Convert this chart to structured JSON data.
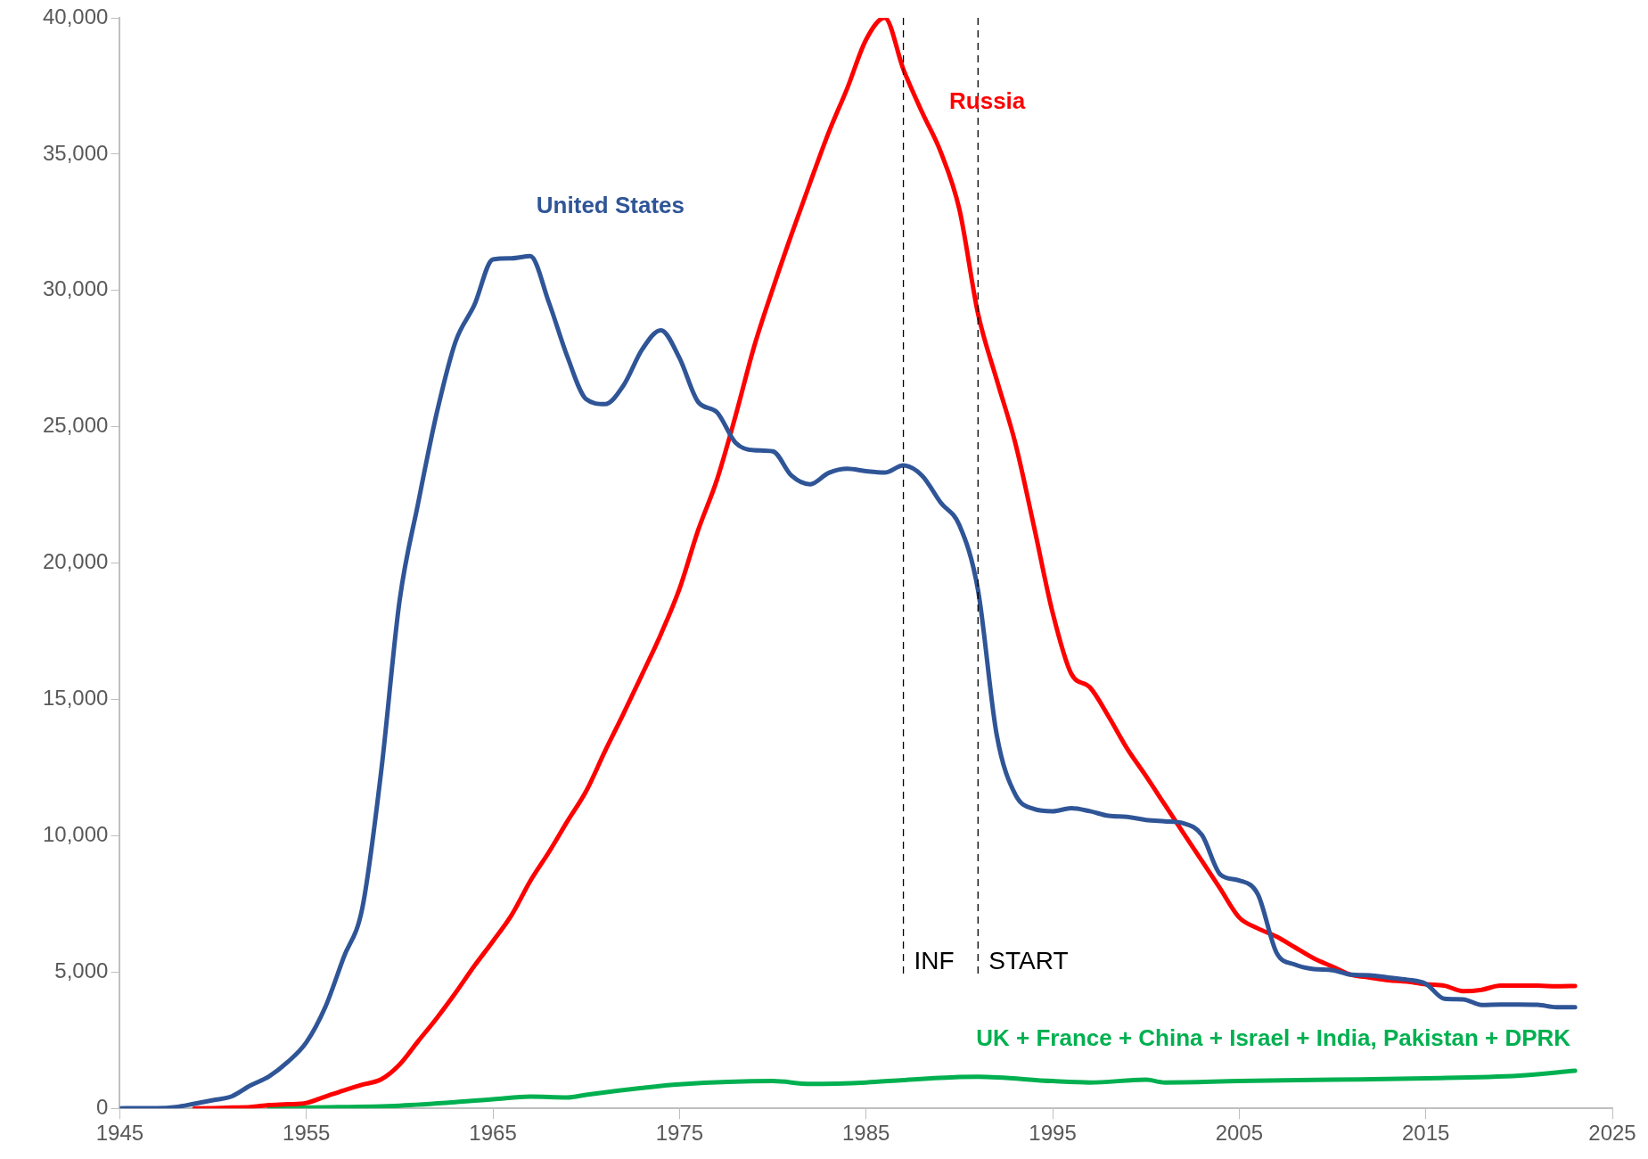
{
  "chart_data": {
    "type": "line",
    "xlim": [
      1945,
      2025
    ],
    "xticks": [
      1945,
      1955,
      1965,
      1975,
      1985,
      1995,
      2005,
      2015,
      2025
    ],
    "ylim": [
      0,
      40000
    ],
    "yticks": [
      {
        "value": 0,
        "label": "0"
      },
      {
        "value": 5000,
        "label": "5,000"
      },
      {
        "value": 10000,
        "label": "10,000"
      },
      {
        "value": 15000,
        "label": "15,000"
      },
      {
        "value": 20000,
        "label": "20,000"
      },
      {
        "value": 25000,
        "label": "25,000"
      },
      {
        "value": 30000,
        "label": "30,000"
      },
      {
        "value": 35000,
        "label": "35,000"
      },
      {
        "value": 40000,
        "label": "40,000"
      }
    ],
    "grid": false,
    "legend": false,
    "marker": "none",
    "line_style": "solid",
    "series": [
      {
        "name": "United States",
        "color": "#2f5597",
        "x": [
          1945,
          1946,
          1947,
          1948,
          1949,
          1950,
          1951,
          1952,
          1953,
          1954,
          1955,
          1956,
          1957,
          1958,
          1959,
          1960,
          1961,
          1962,
          1963,
          1964,
          1965,
          1966,
          1967,
          1968,
          1969,
          1970,
          1971,
          1972,
          1973,
          1974,
          1975,
          1976,
          1977,
          1978,
          1979,
          1980,
          1981,
          1982,
          1983,
          1984,
          1985,
          1986,
          1987,
          1988,
          1989,
          1990,
          1991,
          1992,
          1993,
          1994,
          1995,
          1996,
          1997,
          1998,
          1999,
          2000,
          2001,
          2002,
          2003,
          2004,
          2005,
          2006,
          2007,
          2008,
          2009,
          2010,
          2011,
          2012,
          2013,
          2014,
          2015,
          2016,
          2017,
          2018,
          2019,
          2020,
          2021,
          2022,
          2023
        ],
        "values": [
          0,
          10,
          10,
          50,
          170,
          300,
          440,
          840,
          1170,
          1700,
          2420,
          3690,
          5540,
          7350,
          12300,
          18640,
          22230,
          25540,
          28130,
          29460,
          31140,
          31180,
          31260,
          29560,
          27550,
          26010,
          25830,
          26520,
          27840,
          28540,
          27520,
          25910,
          25540,
          24420,
          24140,
          24100,
          23210,
          22890,
          23310,
          23460,
          23370,
          23320,
          23580,
          23210,
          22220,
          21390,
          19010,
          13710,
          11510,
          10980,
          10900,
          11010,
          10900,
          10730,
          10690,
          10580,
          10530,
          10460,
          10030,
          8570,
          8360,
          7850,
          5710,
          5270,
          5110,
          5070,
          4900,
          4880,
          4800,
          4720,
          4570,
          4020,
          4000,
          3790,
          3810,
          3810,
          3800,
          3710,
          3710
        ]
      },
      {
        "name": "Russia",
        "color": "#ff0000",
        "x": [
          1949,
          1950,
          1951,
          1952,
          1953,
          1954,
          1955,
          1956,
          1957,
          1958,
          1959,
          1960,
          1961,
          1962,
          1963,
          1964,
          1965,
          1966,
          1967,
          1968,
          1969,
          1970,
          1971,
          1972,
          1973,
          1974,
          1975,
          1976,
          1977,
          1978,
          1979,
          1980,
          1981,
          1982,
          1983,
          1984,
          1985,
          1986,
          1987,
          1988,
          1989,
          1990,
          1991,
          1992,
          1993,
          1994,
          1995,
          1996,
          1997,
          1998,
          1999,
          2000,
          2001,
          2002,
          2003,
          2004,
          2005,
          2006,
          2007,
          2008,
          2009,
          2010,
          2011,
          2012,
          2013,
          2014,
          2015,
          2016,
          2017,
          2018,
          2019,
          2020,
          2021,
          2022,
          2023
        ],
        "values": [
          0,
          10,
          30,
          50,
          120,
          150,
          200,
          430,
          660,
          870,
          1060,
          1610,
          2470,
          3320,
          4240,
          5220,
          6130,
          7090,
          8340,
          9400,
          10540,
          11640,
          13090,
          14480,
          15920,
          17390,
          19060,
          21210,
          23040,
          25390,
          27940,
          30060,
          32050,
          33950,
          35800,
          37430,
          39200,
          40000,
          38110,
          36540,
          35080,
          32980,
          29150,
          26730,
          24400,
          21340,
          18180,
          15940,
          15440,
          14370,
          13190,
          12190,
          11150,
          10110,
          9080,
          8040,
          7000,
          6600,
          6300,
          5900,
          5500,
          5200,
          4900,
          4800,
          4700,
          4650,
          4550,
          4500,
          4300,
          4350,
          4500,
          4500,
          4500,
          4480,
          4490
        ]
      },
      {
        "name": "UK + France + China + Israel + India, Pakistan + DPRK",
        "color": "#00b050",
        "x": [
          1953,
          1955,
          1960,
          1965,
          1967,
          1969,
          1970,
          1973,
          1975,
          1980,
          1982,
          1985,
          1987,
          1990,
          1991,
          1995,
          1997,
          2000,
          2001,
          2005,
          2010,
          2015,
          2020,
          2023
        ],
        "values": [
          0,
          30,
          100,
          330,
          430,
          400,
          500,
          750,
          880,
          1000,
          900,
          950,
          1040,
          1150,
          1160,
          1000,
          950,
          1050,
          950,
          1000,
          1050,
          1100,
          1200,
          1380
        ]
      }
    ],
    "ref_lines": [
      {
        "axis": "x",
        "value": 1987,
        "label": "INF",
        "color": "#000000",
        "line_style": "dashed"
      },
      {
        "axis": "x",
        "value": 1991,
        "label": "START",
        "color": "#000000",
        "line_style": "dashed"
      }
    ]
  }
}
